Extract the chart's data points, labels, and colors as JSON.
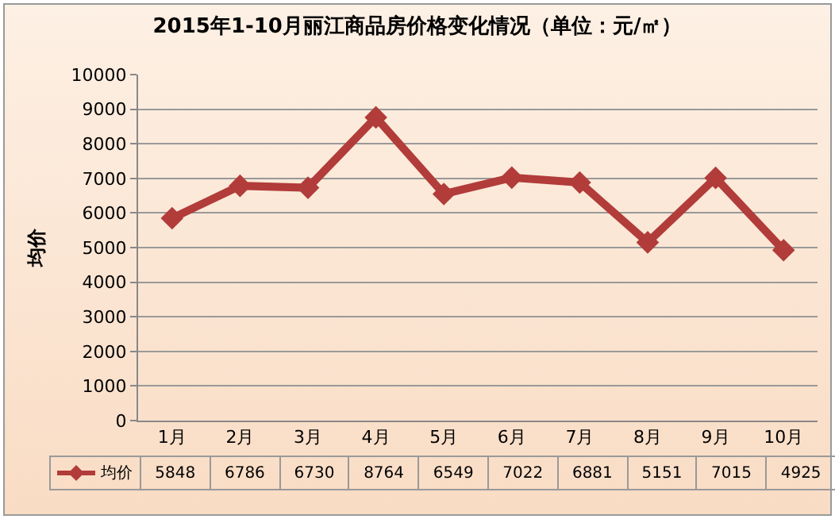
{
  "chart_data": {
    "type": "line",
    "title": "2015年1-10月丽江商品房价格变化情况（单位：元/㎡）",
    "ylabel": "均价",
    "categories": [
      "1月",
      "2月",
      "3月",
      "4月",
      "5月",
      "6月",
      "7月",
      "8月",
      "9月",
      "10月"
    ],
    "series": [
      {
        "name": "均价",
        "color": "#b13c3a",
        "values": [
          5848,
          6786,
          6730,
          8764,
          6549,
          7022,
          6881,
          5151,
          7015,
          4925
        ]
      }
    ],
    "ylim": [
      0,
      10000
    ],
    "yticks": [
      0,
      1000,
      2000,
      3000,
      4000,
      5000,
      6000,
      7000,
      8000,
      9000,
      10000
    ],
    "grid": "y",
    "marker": "diamond",
    "line_style": "solid",
    "data_labels": true,
    "legend": "bottom"
  }
}
